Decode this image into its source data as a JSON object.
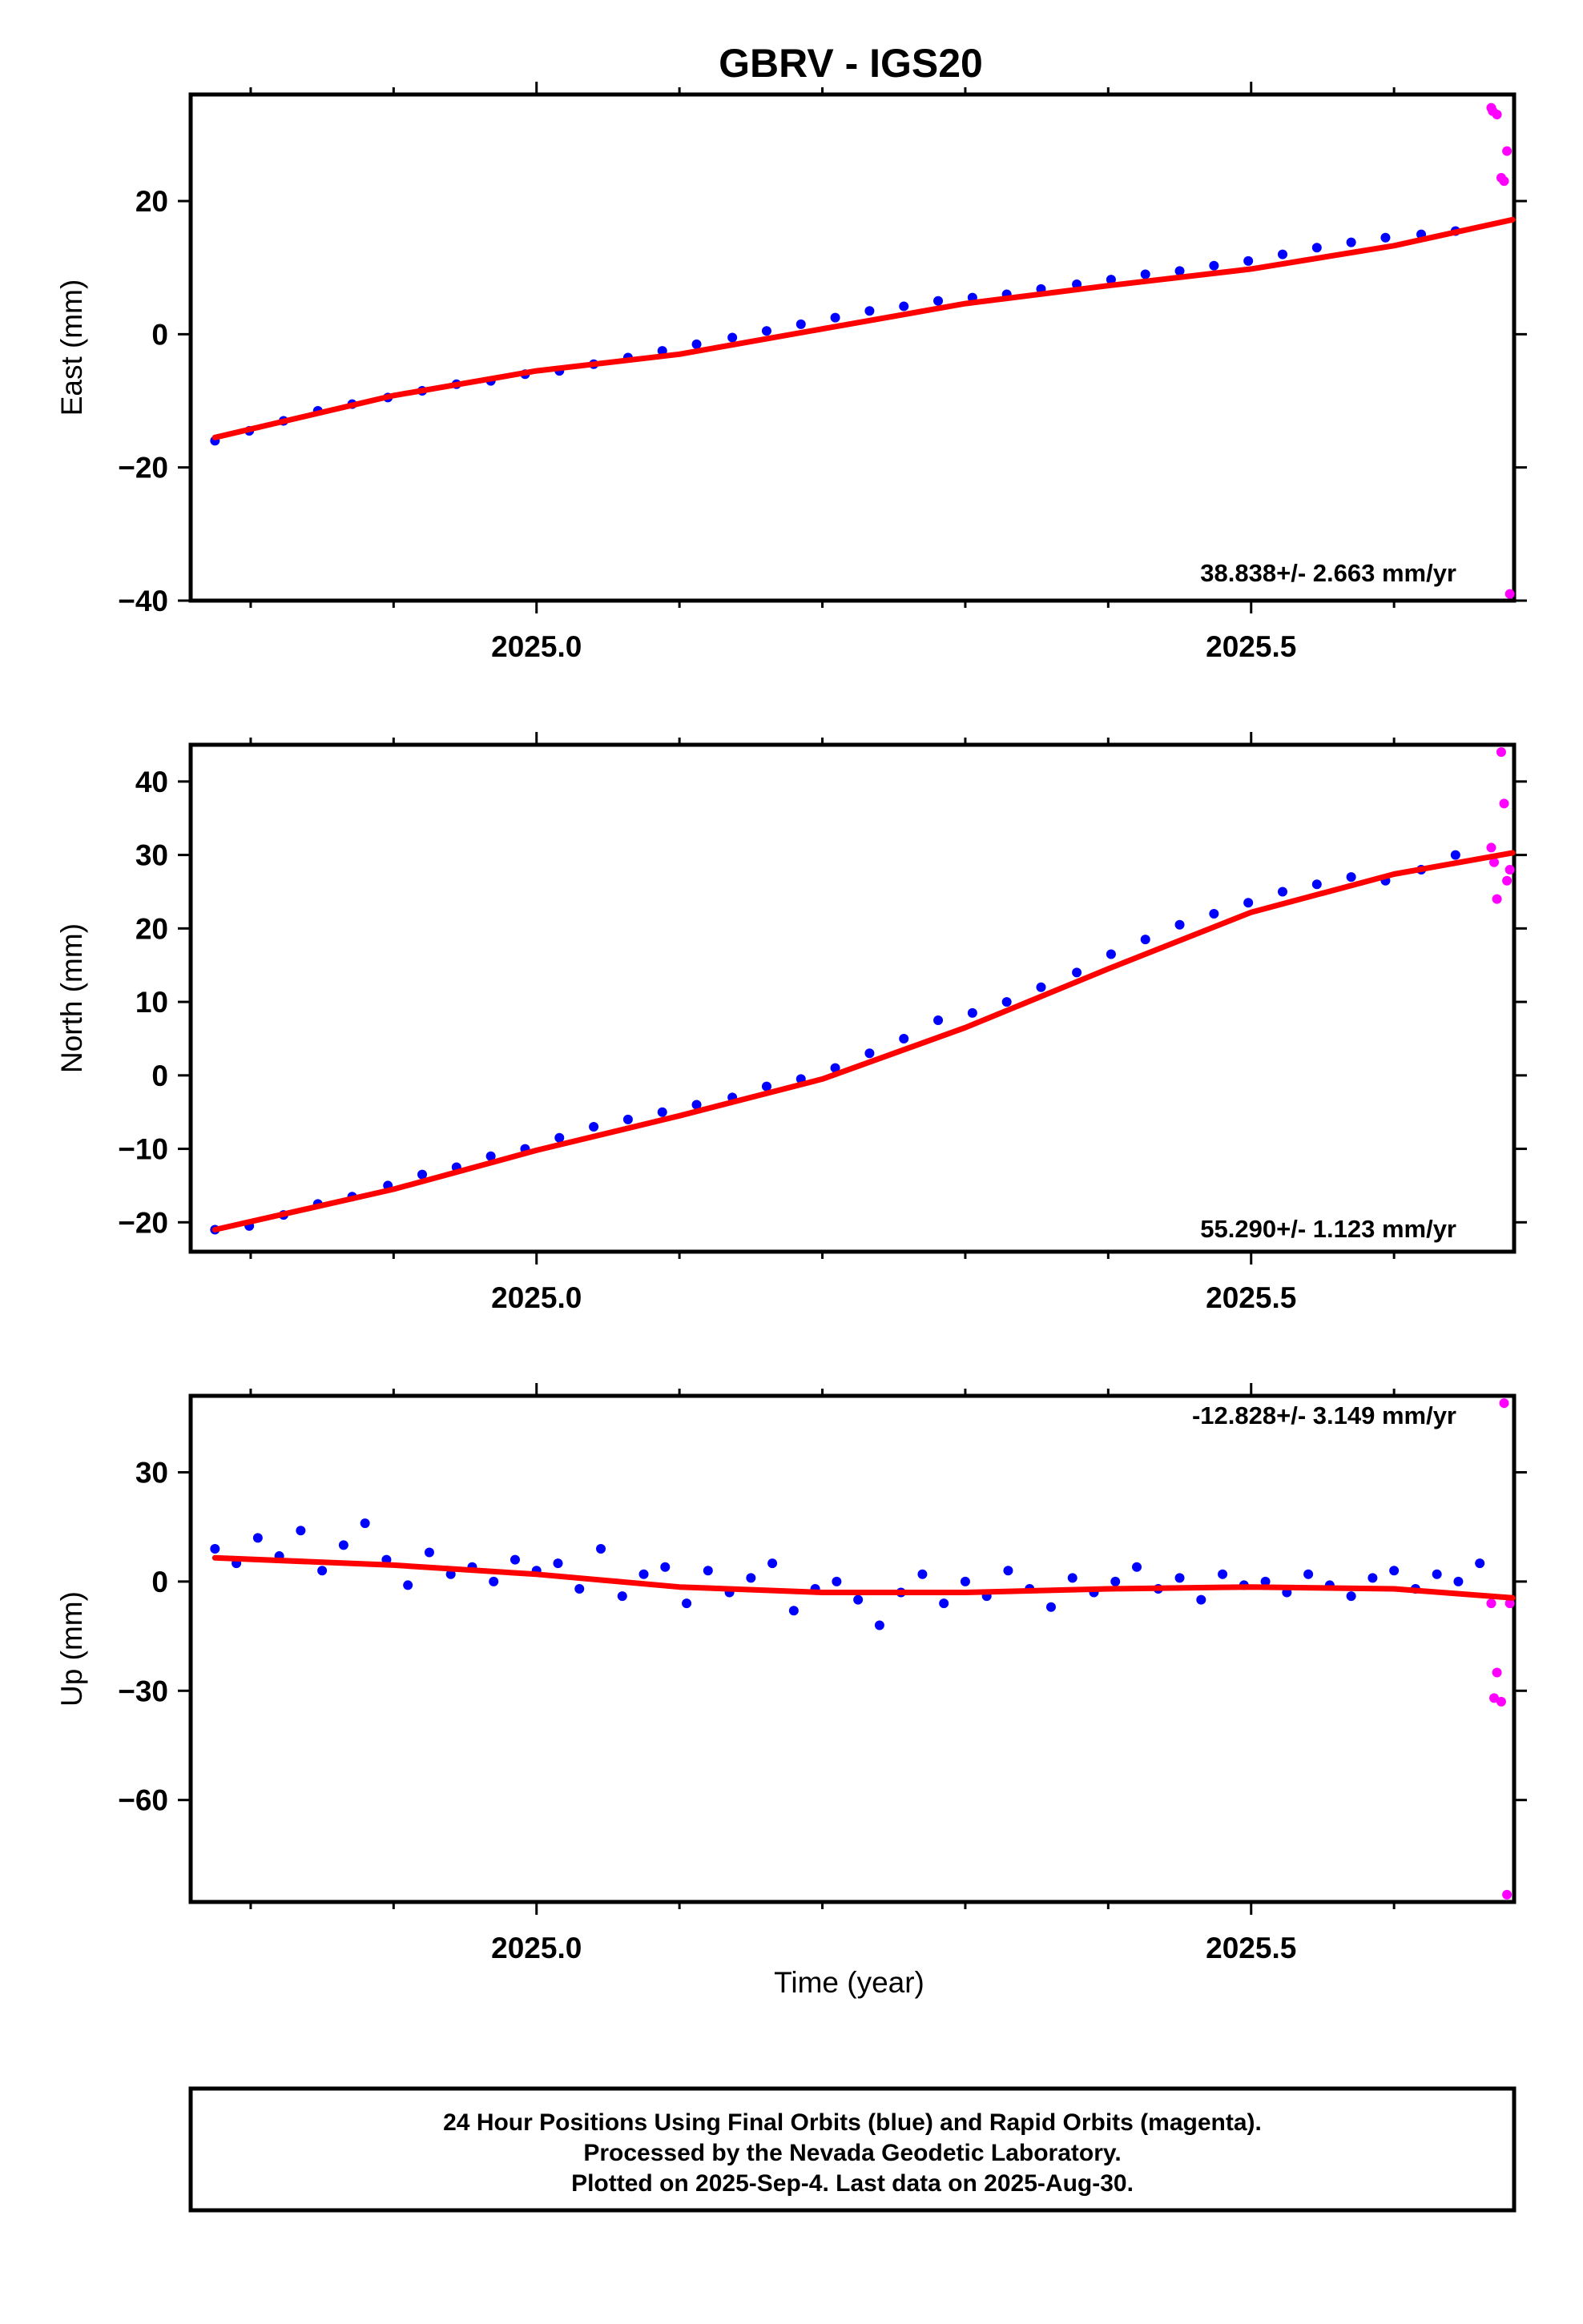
{
  "page": {
    "title": "GBRV - IGS20",
    "footer": {
      "line1": "24 Hour Positions Using Final Orbits (blue) and Rapid Orbits (magenta).",
      "line2": "Processed by the Nevada Geodetic Laboratory.",
      "line3": "Plotted on 2025-Sep-4. Last data on 2025-Aug-30."
    }
  },
  "colors": {
    "final": "#0000ff",
    "rapid": "#ff00ff",
    "fit": "#ff0000",
    "axis": "#000000"
  },
  "chart_data": [
    {
      "type": "scatter",
      "title": "GBRV - IGS20",
      "xlabel": "",
      "ylabel": "East (mm)",
      "xlim": [
        2024.758,
        2025.684
      ],
      "ylim": [
        -40,
        36
      ],
      "xticks": [
        2025.0,
        2025.5
      ],
      "xtick_labels": [
        "2025.0",
        "2025.5"
      ],
      "yticks": [
        -40,
        -20,
        0,
        20
      ],
      "ytick_labels": [
        "−40",
        "−20",
        "0",
        "20"
      ],
      "rate_label": "38.838+/- 2.663 mm/yr",
      "rate_position": "bottom-right",
      "series": [
        {
          "name": "Final Orbits",
          "x": [
            2024.775,
            2024.799,
            2024.823,
            2024.847,
            2024.871,
            2024.896,
            2024.92,
            2024.944,
            2024.968,
            2024.992,
            2025.016,
            2025.04,
            2025.064,
            2025.088,
            2025.112,
            2025.137,
            2025.161,
            2025.185,
            2025.209,
            2025.233,
            2025.257,
            2025.281,
            2025.305,
            2025.329,
            2025.353,
            2025.378,
            2025.402,
            2025.426,
            2025.45,
            2025.474,
            2025.498,
            2025.522,
            2025.546,
            2025.57,
            2025.594,
            2025.619,
            2025.643
          ],
          "y": [
            -16,
            -14.5,
            -13,
            -11.5,
            -10.5,
            -9.5,
            -8.5,
            -7.5,
            -7,
            -6,
            -5.5,
            -4.5,
            -3.5,
            -2.5,
            -1.5,
            -0.5,
            0.5,
            1.5,
            2.5,
            3.5,
            4.2,
            5,
            5.5,
            6,
            6.8,
            7.5,
            8.2,
            9,
            9.5,
            10.3,
            11,
            12,
            13,
            13.8,
            14.5,
            15,
            15.5
          ]
        },
        {
          "name": "Rapid Orbits",
          "x": [
            2025.668,
            2025.672,
            2025.675,
            2025.677,
            2025.679,
            2025.681,
            2025.669
          ],
          "y": [
            34,
            33,
            23.5,
            23,
            27.5,
            -39,
            33.5
          ]
        }
      ],
      "fit": {
        "x": [
          2024.775,
          2024.9,
          2025.0,
          2025.1,
          2025.2,
          2025.3,
          2025.4,
          2025.5,
          2025.6,
          2025.683
        ],
        "y": [
          -15.5,
          -9.2,
          -5.5,
          -3.0,
          0.8,
          4.6,
          7.3,
          9.8,
          13.3,
          17.2
        ]
      }
    },
    {
      "type": "scatter",
      "xlabel": "",
      "ylabel": "North (mm)",
      "xlim": [
        2024.758,
        2025.684
      ],
      "ylim": [
        -24,
        45
      ],
      "xticks": [
        2025.0,
        2025.5
      ],
      "xtick_labels": [
        "2025.0",
        "2025.5"
      ],
      "yticks": [
        -20,
        -10,
        0,
        10,
        20,
        30,
        40
      ],
      "ytick_labels": [
        "−20",
        "−10",
        "0",
        "10",
        "20",
        "30",
        "40"
      ],
      "rate_label": "55.290+/- 1.123 mm/yr",
      "rate_position": "bottom-right",
      "series": [
        {
          "name": "Final Orbits",
          "x": [
            2024.775,
            2024.799,
            2024.823,
            2024.847,
            2024.871,
            2024.896,
            2024.92,
            2024.944,
            2024.968,
            2024.992,
            2025.016,
            2025.04,
            2025.064,
            2025.088,
            2025.112,
            2025.137,
            2025.161,
            2025.185,
            2025.209,
            2025.233,
            2025.257,
            2025.281,
            2025.305,
            2025.329,
            2025.353,
            2025.378,
            2025.402,
            2025.426,
            2025.45,
            2025.474,
            2025.498,
            2025.522,
            2025.546,
            2025.57,
            2025.594,
            2025.619,
            2025.643
          ],
          "y": [
            -21,
            -20.5,
            -19,
            -17.5,
            -16.5,
            -15,
            -13.5,
            -12.5,
            -11,
            -10,
            -8.5,
            -7,
            -6,
            -5,
            -4,
            -3,
            -1.5,
            -0.5,
            1,
            3,
            5,
            7.5,
            8.5,
            10,
            12,
            14,
            16.5,
            18.5,
            20.5,
            22,
            23.5,
            25,
            26,
            27,
            26.5,
            28,
            30
          ]
        },
        {
          "name": "Rapid Orbits",
          "x": [
            2025.668,
            2025.672,
            2025.675,
            2025.677,
            2025.679,
            2025.681,
            2025.67
          ],
          "y": [
            31,
            24,
            44,
            37,
            26.5,
            28,
            29
          ]
        }
      ],
      "fit": {
        "x": [
          2024.775,
          2024.9,
          2025.0,
          2025.1,
          2025.2,
          2025.3,
          2025.4,
          2025.5,
          2025.6,
          2025.683
        ],
        "y": [
          -21,
          -15.5,
          -10.2,
          -5.5,
          -0.5,
          6.5,
          14.5,
          22.2,
          27.4,
          30.3
        ]
      }
    },
    {
      "type": "scatter",
      "xlabel": "Time (year)",
      "ylabel": "Up (mm)",
      "xlim": [
        2024.758,
        2025.684
      ],
      "ylim": [
        -88,
        51
      ],
      "xticks": [
        2025.0,
        2025.5
      ],
      "xtick_labels": [
        "2025.0",
        "2025.5"
      ],
      "yticks": [
        -60,
        -30,
        0,
        30
      ],
      "ytick_labels": [
        "−60",
        "−30",
        "0",
        "30"
      ],
      "rate_label": "-12.828+/- 3.149 mm/yr",
      "rate_position": "top-right",
      "series": [
        {
          "name": "Final Orbits",
          "x": [
            2024.775,
            2024.79,
            2024.805,
            2024.82,
            2024.835,
            2024.85,
            2024.865,
            2024.88,
            2024.895,
            2024.91,
            2024.925,
            2024.94,
            2024.955,
            2024.97,
            2024.985,
            2025.0,
            2025.015,
            2025.03,
            2025.045,
            2025.06,
            2025.075,
            2025.09,
            2025.105,
            2025.12,
            2025.135,
            2025.15,
            2025.165,
            2025.18,
            2025.195,
            2025.21,
            2025.225,
            2025.24,
            2025.255,
            2025.27,
            2025.285,
            2025.3,
            2025.315,
            2025.33,
            2025.345,
            2025.36,
            2025.375,
            2025.39,
            2025.405,
            2025.42,
            2025.435,
            2025.45,
            2025.465,
            2025.48,
            2025.495,
            2025.51,
            2025.525,
            2025.54,
            2025.555,
            2025.57,
            2025.585,
            2025.6,
            2025.615,
            2025.63,
            2025.645,
            2025.66
          ],
          "y": [
            9,
            5,
            12,
            7,
            14,
            3,
            10,
            16,
            6,
            -1,
            8,
            2,
            4,
            0,
            6,
            3,
            5,
            -2,
            9,
            -4,
            2,
            4,
            -6,
            3,
            -3,
            1,
            5,
            -8,
            -2,
            0,
            -5,
            -12,
            -3,
            2,
            -6,
            0,
            -4,
            3,
            -2,
            -7,
            1,
            -3,
            0,
            4,
            -2,
            1,
            -5,
            2,
            -1,
            0,
            -3,
            2,
            -1,
            -4,
            1,
            3,
            -2,
            2,
            0,
            5
          ]
        },
        {
          "name": "Rapid Orbits",
          "x": [
            2025.668,
            2025.672,
            2025.675,
            2025.677,
            2025.679,
            2025.681,
            2025.67
          ],
          "y": [
            -6,
            -25,
            -33,
            49,
            -86,
            -6,
            -32
          ]
        }
      ],
      "fit": {
        "x": [
          2024.775,
          2024.9,
          2025.0,
          2025.1,
          2025.2,
          2025.3,
          2025.4,
          2025.5,
          2025.6,
          2025.683
        ],
        "y": [
          6.5,
          4.5,
          2,
          -1.5,
          -3,
          -3,
          -2,
          -1.5,
          -2,
          -4.5
        ]
      }
    }
  ]
}
